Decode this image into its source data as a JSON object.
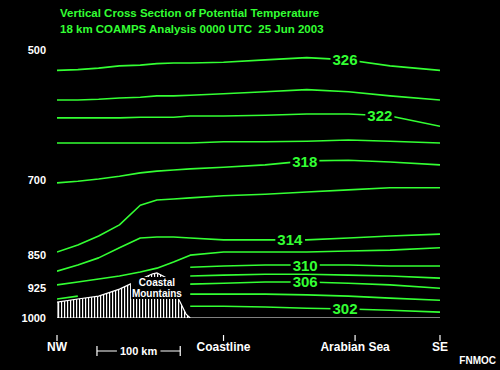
{
  "chart_data": {
    "type": "line",
    "title": "Vertical Cross Section of Potential Temperature",
    "subtitle": "18 km COAMPS Analysis 0000 UTC  25 Jun 2003",
    "annotations": [
      "FNMOC"
    ],
    "color": "#33ff33",
    "log": "y",
    "xlim": [
      0,
      460
    ],
    "xticks": [
      {
        "value": 0,
        "label": "NW"
      },
      {
        "value": 200,
        "label": "Coastline"
      },
      {
        "value": 358,
        "label": "Arabian Sea"
      },
      {
        "value": 460,
        "label": "SE"
      }
    ],
    "ylim": [
      1000,
      500
    ],
    "yticks": [
      500,
      700,
      850,
      925,
      1000
    ],
    "x": [
      0,
      25,
      50,
      75,
      100,
      120,
      140,
      160,
      200,
      250,
      300,
      350,
      400,
      460
    ],
    "series": [
      {
        "name": "326",
        "values": [
          527,
          526,
          524,
          521,
          520,
          518,
          517,
          517,
          516,
          513,
          510,
          513,
          521,
          527
        ]
      },
      {
        "values": [
          569,
          569,
          568,
          566,
          565,
          563,
          563,
          562,
          560,
          557,
          554,
          557,
          563,
          569
        ]
      },
      {
        "name": "322",
        "values": [
          596,
          596,
          596,
          596,
          595,
          595,
          595,
          593,
          593,
          592,
          590,
          590,
          593,
          609
        ]
      },
      {
        "values": [
          636,
          636,
          636,
          636,
          636,
          636,
          636,
          636,
          634,
          634,
          633,
          631,
          633,
          636
        ]
      },
      {
        "name": "318",
        "values": [
          705,
          702,
          698,
          693,
          687,
          684,
          682,
          680,
          677,
          673,
          666,
          665,
          668,
          673
        ]
      },
      {
        "values": [
          843,
          828,
          809,
          786,
          747,
          737,
          735,
          733,
          729,
          726,
          722,
          718,
          714,
          714
        ]
      },
      {
        "name": "314",
        "values": [
          886,
          872,
          856,
          834,
          813,
          811,
          811,
          813,
          817,
          817,
          817,
          813,
          809,
          805
        ]
      },
      {
        "values": [
          918,
          911,
          904,
          897,
          888,
          879,
          865,
          850,
          843,
          843,
          843,
          841,
          839,
          834
        ]
      },
      {
        "name": "310",
        "values": [
          952,
          945,
          null,
          null,
          null,
          null,
          null,
          877,
          874,
          872,
          872,
          872,
          874,
          874
        ]
      },
      {
        "values": [
          null,
          null,
          null,
          null,
          null,
          null,
          null,
          897,
          895,
          893,
          893,
          895,
          897,
          902
        ]
      },
      {
        "name": "306",
        "values": [
          null,
          null,
          null,
          null,
          null,
          null,
          null,
          916,
          914,
          911,
          911,
          914,
          918,
          926
        ]
      },
      {
        "values": [
          null,
          null,
          null,
          null,
          null,
          null,
          null,
          940,
          940,
          940,
          942,
          945,
          950,
          955
        ]
      },
      {
        "name": "302",
        "values": [
          null,
          null,
          null,
          null,
          null,
          null,
          null,
          970,
          970,
          972,
          975,
          977,
          980,
          985
        ]
      }
    ],
    "terrain": {
      "name": "Coastal Mountains",
      "x": [
        0,
        25,
        50,
        75,
        100,
        115,
        120,
        130,
        140,
        148,
        155,
        160,
        170,
        460
      ],
      "values": [
        960,
        952,
        945,
        928,
        905,
        892,
        890,
        900,
        930,
        960,
        990,
        1000,
        1000,
        1000
      ]
    },
    "scale_bar": {
      "label": "100 km",
      "start": 48,
      "length": 100
    }
  }
}
